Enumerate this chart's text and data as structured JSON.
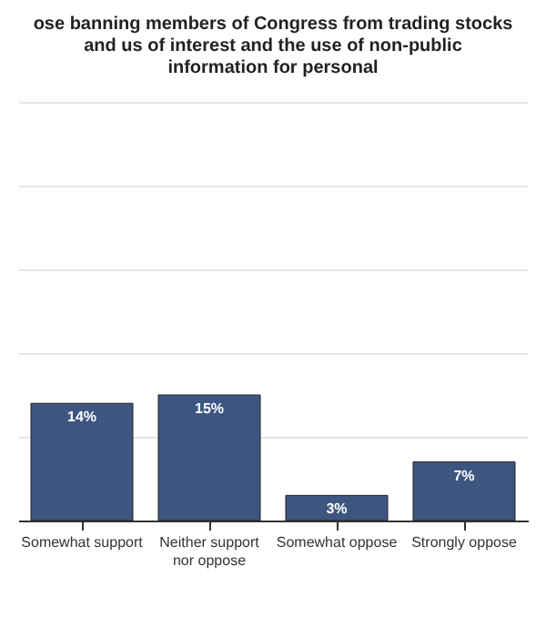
{
  "chart_data": {
    "type": "bar",
    "title": "ose banning members of Congress from trading stocks and us of interest and the use of non-public information for personal",
    "categories": [
      "Somewhat support",
      "Neither support nor oppose",
      "Somewhat oppose",
      "Strongly oppose"
    ],
    "values": [
      14,
      15,
      3,
      7
    ],
    "value_labels": [
      "14%",
      "15%",
      "3%",
      "7%"
    ],
    "color": "#3d5680",
    "ylim": [
      0,
      50
    ],
    "yticks": [
      0,
      10,
      20,
      30,
      40,
      50
    ],
    "grid": "y",
    "tick_labels": "x"
  }
}
